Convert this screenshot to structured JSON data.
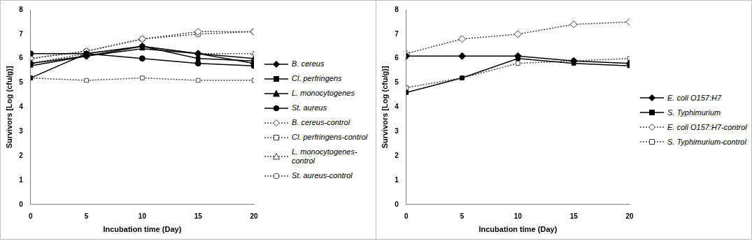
{
  "chart_data": [
    {
      "type": "line",
      "x_label": "Incubation time (Day)",
      "y_label": "Survivors [Log (cfu/g)]",
      "x": [
        0,
        5,
        10,
        15,
        20
      ],
      "xlim": [
        0,
        20
      ],
      "xticks": [
        0,
        5,
        10,
        15,
        20
      ],
      "ylim": [
        0,
        8
      ],
      "yticks": [
        0,
        1,
        2,
        3,
        4,
        5,
        6,
        7,
        8
      ],
      "grid": false,
      "legend": "right",
      "series": [
        {
          "name": "B. cereus",
          "color": "#000000",
          "marker": "diamond",
          "line_style": "solid",
          "values": [
            5.8,
            6.1,
            6.5,
            6.2,
            5.8
          ]
        },
        {
          "name": "Cl. perfringens",
          "color": "#000000",
          "marker": "square",
          "line_style": "solid",
          "values": [
            5.2,
            6.2,
            6.5,
            6.0,
            5.9
          ]
        },
        {
          "name": "L. monocytogenes",
          "color": "#000000",
          "marker": "triangle",
          "line_style": "solid",
          "values": [
            5.7,
            6.1,
            6.4,
            6.2,
            6.0
          ]
        },
        {
          "name": "St. aureus",
          "color": "#000000",
          "marker": "circle",
          "line_style": "solid",
          "values": [
            6.2,
            6.2,
            6.0,
            5.8,
            5.7
          ]
        },
        {
          "name": "B. cereus-control",
          "color": "#404040",
          "marker": "open-diamond",
          "line_style": "dotted",
          "values": [
            6.0,
            6.3,
            6.8,
            7.1,
            7.1
          ]
        },
        {
          "name": "Cl. perfringens-control",
          "color": "#404040",
          "marker": "open-square",
          "line_style": "dotted",
          "values": [
            5.2,
            5.1,
            5.2,
            5.1,
            5.1
          ]
        },
        {
          "name": "L. monocytogenes-control",
          "color": "#404040",
          "marker": "open-triangle",
          "line_style": "dotted",
          "values": [
            5.8,
            6.2,
            6.5,
            6.2,
            6.2
          ]
        },
        {
          "name": "St. aureus-control",
          "color": "#404040",
          "marker": "open-circle",
          "line_style": "dotted",
          "values": [
            6.0,
            6.3,
            6.8,
            7.0,
            7.1
          ]
        }
      ]
    },
    {
      "type": "line",
      "x_label": "Incubation time (Day)",
      "y_label": "Survivors [Log (cfu/g)]",
      "x": [
        0,
        5,
        10,
        15,
        20
      ],
      "xlim": [
        0,
        20
      ],
      "xticks": [
        0,
        5,
        10,
        15,
        20
      ],
      "ylim": [
        0,
        8
      ],
      "yticks": [
        0,
        1,
        2,
        3,
        4,
        5,
        6,
        7,
        8
      ],
      "grid": false,
      "legend": "right",
      "series": [
        {
          "name": "E. coli O157:H7",
          "color": "#000000",
          "marker": "diamond",
          "line_style": "solid",
          "values": [
            6.1,
            6.1,
            6.1,
            5.9,
            5.8
          ]
        },
        {
          "name": "S. Typhimurium",
          "color": "#000000",
          "marker": "square",
          "line_style": "solid",
          "values": [
            4.6,
            5.2,
            6.0,
            5.8,
            5.7
          ]
        },
        {
          "name": "E. coli O157:H7-control",
          "color": "#404040",
          "marker": "open-diamond",
          "line_style": "dotted",
          "values": [
            6.2,
            6.8,
            7.0,
            7.4,
            7.5
          ]
        },
        {
          "name": "S. Typhimurium-control",
          "color": "#404040",
          "marker": "open-square",
          "line_style": "dotted",
          "values": [
            4.8,
            5.2,
            5.8,
            5.9,
            6.0
          ]
        }
      ]
    }
  ]
}
